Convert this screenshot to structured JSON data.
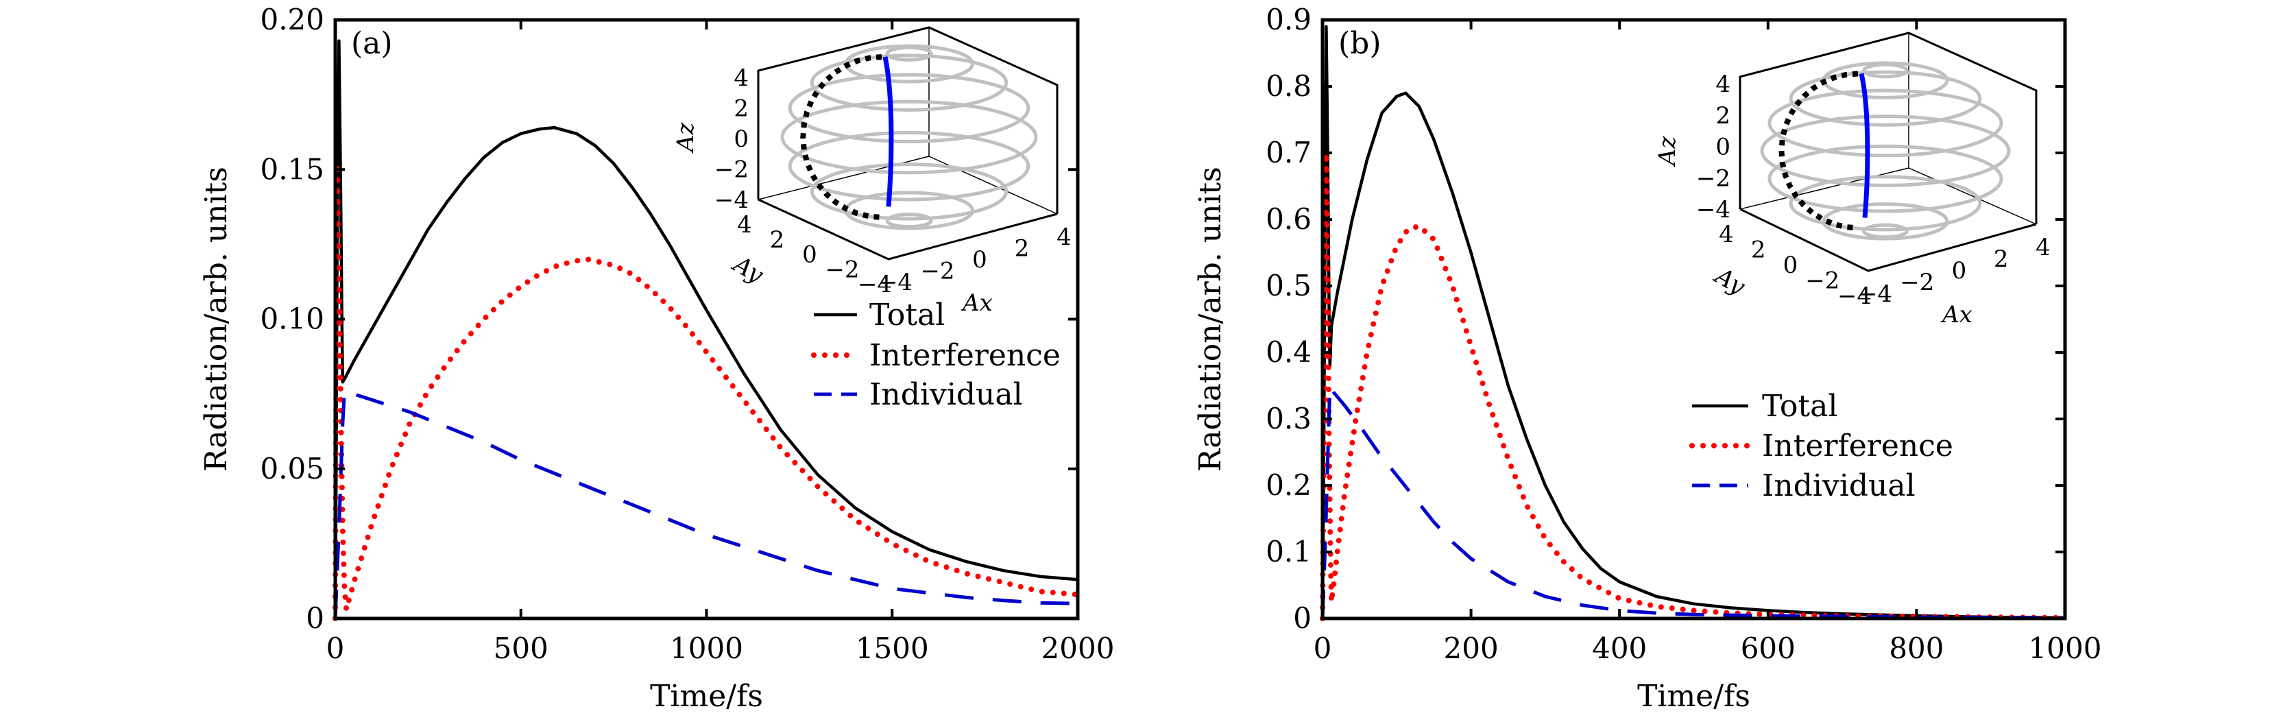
{
  "colors": {
    "total": "#000000",
    "interference": "#ff0000",
    "individual": "#0000cc",
    "sphere": "#c0c0c0",
    "inset_trace_solid": "#0000ff",
    "inset_trace_dotted": "#000000"
  },
  "chart_data": [
    {
      "type": "line",
      "panel_label": "(a)",
      "title": "",
      "xlabel": "Time/fs",
      "ylabel": "Radiation/arb. units",
      "xlim": [
        0,
        2000
      ],
      "ylim": [
        0,
        0.2
      ],
      "xticks": [
        0,
        500,
        1000,
        1500,
        2000
      ],
      "xtick_labels": [
        "0",
        "500",
        "1000",
        "1500",
        "2000"
      ],
      "yticks": [
        0,
        0.05,
        0.1,
        0.15,
        0.2
      ],
      "ytick_labels": [
        "0",
        "0.05",
        "0.10",
        "0.15",
        "0.20"
      ],
      "grid": false,
      "legend_position": "center-right",
      "series": [
        {
          "name": "Total",
          "style": "solid",
          "x": [
            0,
            3,
            6,
            10,
            14,
            18,
            20,
            20,
            25,
            50,
            100,
            150,
            200,
            250,
            300,
            350,
            400,
            450,
            500,
            550,
            590,
            650,
            700,
            750,
            800,
            850,
            900,
            950,
            1000,
            1100,
            1200,
            1300,
            1400,
            1500,
            1600,
            1700,
            1800,
            1900,
            2000
          ],
          "y": [
            0,
            0.06,
            0.15,
            0.193,
            0.15,
            0.1,
            0.079,
            0.079,
            0.08,
            0.086,
            0.097,
            0.108,
            0.119,
            0.13,
            0.139,
            0.147,
            0.154,
            0.159,
            0.162,
            0.1635,
            0.164,
            0.162,
            0.158,
            0.152,
            0.144,
            0.135,
            0.125,
            0.114,
            0.103,
            0.082,
            0.063,
            0.048,
            0.037,
            0.029,
            0.023,
            0.019,
            0.016,
            0.014,
            0.013
          ]
        },
        {
          "name": "Interference",
          "style": "dotted",
          "x": [
            0,
            3,
            5,
            8,
            12,
            16,
            20,
            25,
            30,
            50,
            100,
            150,
            200,
            250,
            300,
            350,
            400,
            450,
            500,
            550,
            600,
            650,
            680,
            750,
            800,
            850,
            900,
            950,
            1000,
            1100,
            1200,
            1300,
            1400,
            1500,
            1600,
            1700,
            1800,
            1900,
            2000
          ],
          "y": [
            0,
            0.1,
            0.152,
            0.13,
            0.1,
            0.06,
            0.03,
            0.01,
            0.003,
            0.012,
            0.032,
            0.05,
            0.065,
            0.076,
            0.085,
            0.093,
            0.1,
            0.106,
            0.111,
            0.115,
            0.118,
            0.1195,
            0.12,
            0.118,
            0.115,
            0.11,
            0.104,
            0.097,
            0.089,
            0.073,
            0.057,
            0.044,
            0.033,
            0.025,
            0.019,
            0.015,
            0.012,
            0.009,
            0.008
          ]
        },
        {
          "name": "Individual",
          "style": "dashed",
          "x": [
            0,
            10,
            20,
            25,
            100,
            200,
            300,
            400,
            500,
            600,
            700,
            800,
            900,
            1000,
            1100,
            1200,
            1300,
            1400,
            1500,
            1600,
            1700,
            1800,
            1900,
            2000
          ],
          "y": [
            0,
            0.03,
            0.065,
            0.076,
            0.073,
            0.069,
            0.064,
            0.059,
            0.053,
            0.048,
            0.043,
            0.038,
            0.033,
            0.028,
            0.024,
            0.02,
            0.016,
            0.013,
            0.01,
            0.0085,
            0.007,
            0.006,
            0.0052,
            0.005
          ]
        }
      ],
      "inset": {
        "type": "3d-wireframe-sphere",
        "xlabel": "A_x",
        "ylabel": "A_y",
        "zlabel": "A_z",
        "xticks": [
          "-4",
          "-2",
          "0",
          "2",
          "4"
        ],
        "yticks": [
          "4",
          "2",
          "0",
          "-2",
          "-4"
        ],
        "zticks": [
          "4",
          "2",
          "0",
          "-2",
          "-4"
        ],
        "range": [
          -4,
          4
        ]
      }
    },
    {
      "type": "line",
      "panel_label": "(b)",
      "title": "",
      "xlabel": "Time/fs",
      "ylabel": "Radiation/arb. units",
      "xlim": [
        0,
        1000
      ],
      "ylim": [
        0,
        0.9
      ],
      "xticks": [
        0,
        200,
        400,
        600,
        800,
        1000
      ],
      "xtick_labels": [
        "0",
        "200",
        "400",
        "600",
        "800",
        "1000"
      ],
      "yticks": [
        0,
        0.1,
        0.2,
        0.3,
        0.4,
        0.5,
        0.6,
        0.7,
        0.8,
        0.9
      ],
      "ytick_labels": [
        "0",
        "0.1",
        "0.2",
        "0.3",
        "0.4",
        "0.5",
        "0.6",
        "0.7",
        "0.8",
        "0.9"
      ],
      "grid": false,
      "legend_position": "center-right",
      "series": [
        {
          "name": "Total",
          "style": "solid",
          "x": [
            0,
            2,
            4,
            5,
            7,
            9,
            10,
            10,
            12,
            20,
            40,
            60,
            80,
            100,
            112,
            130,
            150,
            175,
            200,
            225,
            250,
            275,
            300,
            325,
            350,
            375,
            400,
            450,
            500,
            550,
            600,
            650,
            700,
            800,
            900,
            1000
          ],
          "y": [
            0,
            0.3,
            0.7,
            0.89,
            0.7,
            0.45,
            0.38,
            0.38,
            0.44,
            0.49,
            0.6,
            0.69,
            0.76,
            0.785,
            0.79,
            0.77,
            0.72,
            0.64,
            0.55,
            0.45,
            0.35,
            0.27,
            0.2,
            0.145,
            0.105,
            0.075,
            0.055,
            0.033,
            0.022,
            0.016,
            0.012,
            0.009,
            0.007,
            0.004,
            0.002,
            0.001
          ]
        },
        {
          "name": "Interference",
          "style": "dotted",
          "x": [
            0,
            2,
            4,
            5,
            7,
            9,
            11,
            12,
            15,
            20,
            30,
            45,
            60,
            80,
            100,
            115,
            130,
            150,
            175,
            200,
            225,
            250,
            275,
            300,
            325,
            350,
            400,
            450,
            500,
            550,
            600,
            700,
            800,
            900,
            1000
          ],
          "y": [
            0,
            0.3,
            0.6,
            0.7,
            0.5,
            0.25,
            0.08,
            0.025,
            0.05,
            0.1,
            0.19,
            0.3,
            0.4,
            0.5,
            0.56,
            0.585,
            0.59,
            0.57,
            0.5,
            0.41,
            0.32,
            0.24,
            0.17,
            0.12,
            0.085,
            0.06,
            0.03,
            0.018,
            0.012,
            0.008,
            0.006,
            0.004,
            0.003,
            0.002,
            0.001
          ]
        },
        {
          "name": "Individual",
          "style": "dashed",
          "x": [
            0,
            4,
            8,
            10,
            15,
            30,
            50,
            75,
            100,
            125,
            150,
            175,
            200,
            250,
            300,
            350,
            400,
            450,
            500,
            600,
            700,
            800,
            900,
            1000
          ],
          "y": [
            0,
            0.12,
            0.28,
            0.35,
            0.34,
            0.32,
            0.29,
            0.25,
            0.215,
            0.18,
            0.145,
            0.115,
            0.09,
            0.055,
            0.033,
            0.02,
            0.012,
            0.008,
            0.006,
            0.004,
            0.003,
            0.002,
            0.0015,
            0.001
          ]
        }
      ],
      "inset": {
        "type": "3d-wireframe-sphere",
        "xlabel": "A_x",
        "ylabel": "A_y",
        "zlabel": "A_z",
        "xticks": [
          "-4",
          "-2",
          "0",
          "2",
          "4"
        ],
        "yticks": [
          "4",
          "2",
          "0",
          "-2",
          "-4"
        ],
        "zticks": [
          "4",
          "2",
          "0",
          "-2",
          "-4"
        ],
        "range": [
          -4,
          4
        ]
      }
    }
  ]
}
